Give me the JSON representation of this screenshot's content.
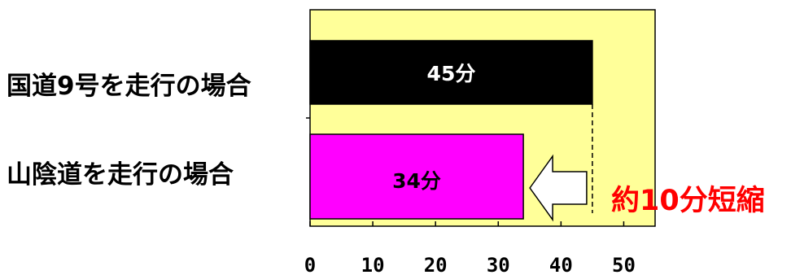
{
  "chart_data": {
    "type": "bar",
    "orientation": "horizontal",
    "categories": [
      "国道9号を走行の場合",
      "山陰道を走行の場合"
    ],
    "values": [
      45,
      34
    ],
    "data_labels": [
      "45分",
      "34分"
    ],
    "xlim": [
      0,
      55
    ],
    "xticks": [
      0,
      10,
      20,
      30,
      40,
      50
    ],
    "annotation": "約10分短縮",
    "colors": {
      "plot_background": "#ffff99",
      "bar_1": "#000000",
      "bar_2": "#ff00ff",
      "label_1": "#ffffff",
      "label_2": "#000000",
      "annotation": "#ff0000",
      "arrow_fill": "#ffffff"
    }
  }
}
